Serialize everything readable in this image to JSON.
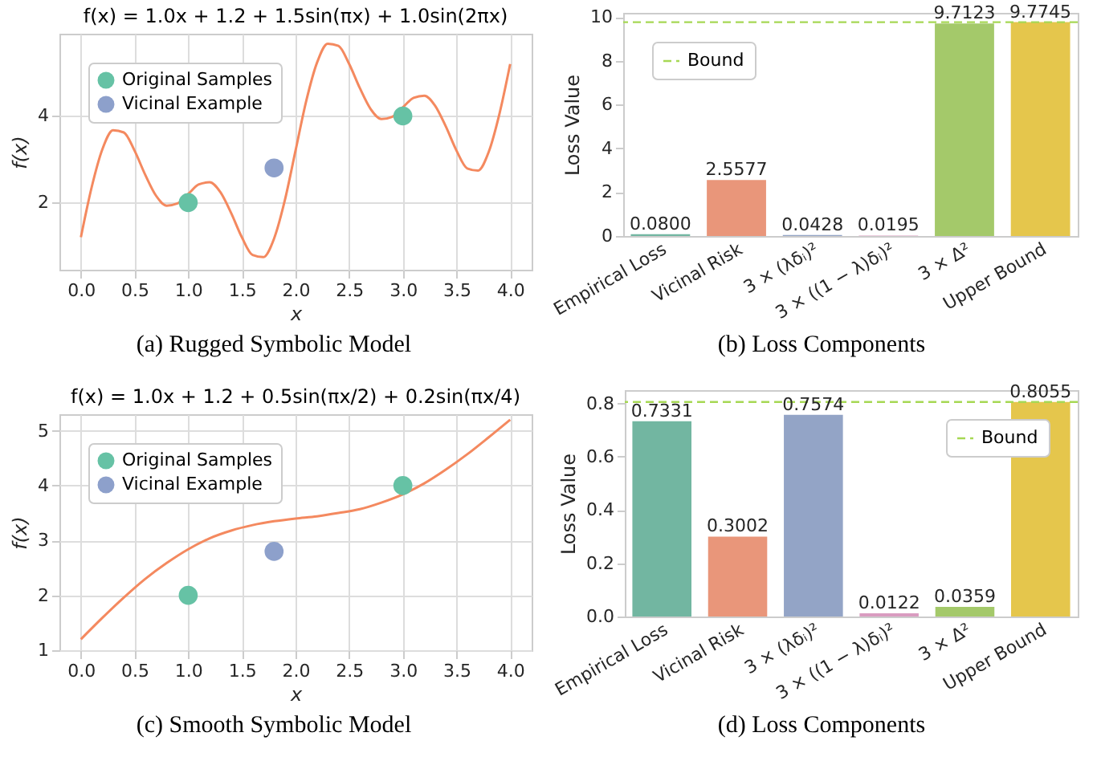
{
  "chart_data": [
    {
      "type": "line",
      "title": "f(x) = 1.0x + 1.2 + 1.5sin(πx) + 1.0sin(2πx)",
      "xlabel": "x",
      "ylabel": "f(x)",
      "annotations": [
        "(a) Rugged Symbolic Model"
      ],
      "series": [
        {
          "type": "line",
          "color": "#f4895f",
          "x": [
            0,
            0.1,
            0.2,
            0.3,
            0.4,
            0.5,
            0.6,
            0.7,
            0.8,
            0.9,
            1,
            1.1,
            1.2,
            1.3,
            1.4,
            1.5,
            1.6,
            1.7,
            1.8,
            1.9,
            2,
            2.1,
            2.2,
            2.3,
            2.4,
            2.5,
            2.6,
            2.7,
            2.8,
            2.9,
            3,
            3.1,
            3.2,
            3.3,
            3.4,
            3.5,
            3.6,
            3.7,
            3.8,
            3.9,
            4
          ],
          "values": [
            1.2,
            2.35,
            3.23,
            3.67,
            3.62,
            3.2,
            2.64,
            2.16,
            1.93,
            1.98,
            2.2,
            2.42,
            2.47,
            2.24,
            1.76,
            1.2,
            0.79,
            0.74,
            1.17,
            2.05,
            3.2,
            4.35,
            5.23,
            5.67,
            5.62,
            5.2,
            4.64,
            4.16,
            3.93,
            3.98,
            4.2,
            4.42,
            4.47,
            4.24,
            3.76,
            3.2,
            2.79,
            2.74,
            3.17,
            4.05,
            5.2
          ]
        },
        {
          "type": "scatter",
          "name": "Original Samples",
          "color": "#66c2a5",
          "marker": "circle",
          "x": [
            1,
            3
          ],
          "values": [
            2,
            4
          ]
        },
        {
          "type": "scatter",
          "name": "Vicinal Example",
          "color": "#8da0cb",
          "marker": "circle",
          "x": [
            1.8
          ],
          "values": [
            2.8
          ]
        }
      ],
      "xlim": [
        -0.2,
        4.2
      ],
      "ylim": [
        0.45,
        5.9
      ],
      "xticks": [
        {
          "value": 0,
          "label": "0.0"
        },
        0.5,
        {
          "value": 1,
          "label": "1.0"
        },
        1.5,
        {
          "value": 2,
          "label": "2.0"
        },
        2.5,
        {
          "value": 3,
          "label": "3.0"
        },
        3.5,
        {
          "value": 4,
          "label": "4.0"
        }
      ],
      "yticks": [
        2,
        4
      ],
      "grid": true,
      "legend": "top left"
    },
    {
      "type": "bar",
      "ylabel": "Loss Value",
      "annotations": [
        "(b) Loss Components"
      ],
      "categories": [
        "Empirical Loss",
        "Vicinal Risk",
        "3 × (λδᵢ)²",
        "3 × ((1 − λ)δᵢ)²",
        "3 × Δ²",
        "Upper Bound"
      ],
      "values": [
        0.08,
        2.5577,
        0.0428,
        0.0195,
        9.7123,
        9.7745
      ],
      "colors": [
        "#72b6a1",
        "#e9967a",
        "#93a4c6",
        "#d99cc0",
        "#a4c96a",
        "#e5c64c"
      ],
      "value_labels": [
        "0.0800",
        "2.5577",
        "0.0428",
        "0.0195",
        "9.7123",
        "9.7745"
      ],
      "ylim": [
        0,
        10.2
      ],
      "yticks": [
        0,
        2,
        4,
        6,
        8,
        10
      ],
      "ref_lines": [
        {
          "axis": "y",
          "value": 9.7745,
          "label": "Bound",
          "color": "#a6d854",
          "line_style": "dashed"
        }
      ],
      "legend": "top left"
    },
    {
      "type": "line",
      "title": "f(x) = 1.0x + 1.2 + 0.5sin(πx/2) + 0.2sin(πx/4)",
      "xlabel": "x",
      "ylabel": "f(x)",
      "annotations": [
        "(c) Smooth Symbolic Model"
      ],
      "series": [
        {
          "type": "line",
          "color": "#f4895f",
          "x": [
            0,
            0.2,
            0.4,
            0.6,
            0.8,
            1,
            1.2,
            1.4,
            1.6,
            1.8,
            2,
            2.2,
            2.4,
            2.6,
            2.8,
            3,
            3.2,
            3.4,
            3.6,
            3.8,
            4
          ],
          "values": [
            1.2,
            1.59,
            1.96,
            2.3,
            2.59,
            2.84,
            3.04,
            3.18,
            3.28,
            3.35,
            3.4,
            3.44,
            3.5,
            3.57,
            3.69,
            3.84,
            4.04,
            4.29,
            4.57,
            4.88,
            5.2
          ]
        },
        {
          "type": "scatter",
          "name": "Original Samples",
          "color": "#66c2a5",
          "marker": "circle",
          "x": [
            1,
            3
          ],
          "values": [
            2,
            4
          ]
        },
        {
          "type": "scatter",
          "name": "Vicinal Example",
          "color": "#8da0cb",
          "marker": "circle",
          "x": [
            1.8
          ],
          "values": [
            2.8
          ]
        }
      ],
      "xlim": [
        -0.2,
        4.2
      ],
      "ylim": [
        1,
        5.3
      ],
      "xticks": [
        {
          "value": 0,
          "label": "0.0"
        },
        0.5,
        {
          "value": 1,
          "label": "1.0"
        },
        1.5,
        {
          "value": 2,
          "label": "2.0"
        },
        2.5,
        {
          "value": 3,
          "label": "3.0"
        },
        3.5,
        {
          "value": 4,
          "label": "4.0"
        }
      ],
      "yticks": [
        1,
        2,
        3,
        4,
        5
      ],
      "grid": true,
      "legend": "top left"
    },
    {
      "type": "bar",
      "ylabel": "Loss Value",
      "annotations": [
        "(d) Loss Components"
      ],
      "categories": [
        "Empirical Loss",
        "Vicinal Risk",
        "3 × (λδᵢ)²",
        "3 × ((1 − λ)δᵢ)²",
        "3 × Δ²",
        "Upper Bound"
      ],
      "values": [
        0.7331,
        0.3002,
        0.7574,
        0.0122,
        0.0359,
        0.8055
      ],
      "colors": [
        "#72b6a1",
        "#e9967a",
        "#93a4c6",
        "#d99cc0",
        "#a4c96a",
        "#e5c64c"
      ],
      "value_labels": [
        "0.7331",
        "0.3002",
        "0.7574",
        "0.0122",
        "0.0359",
        "0.8055"
      ],
      "ylim": [
        0,
        0.85
      ],
      "yticks": [
        {
          "value": 0,
          "label": "0.0"
        },
        0.2,
        0.4,
        0.6,
        0.8
      ],
      "ref_lines": [
        {
          "axis": "y",
          "value": 0.8055,
          "label": "Bound",
          "color": "#a6d854",
          "line_style": "dashed"
        }
      ],
      "legend": "top right"
    }
  ]
}
